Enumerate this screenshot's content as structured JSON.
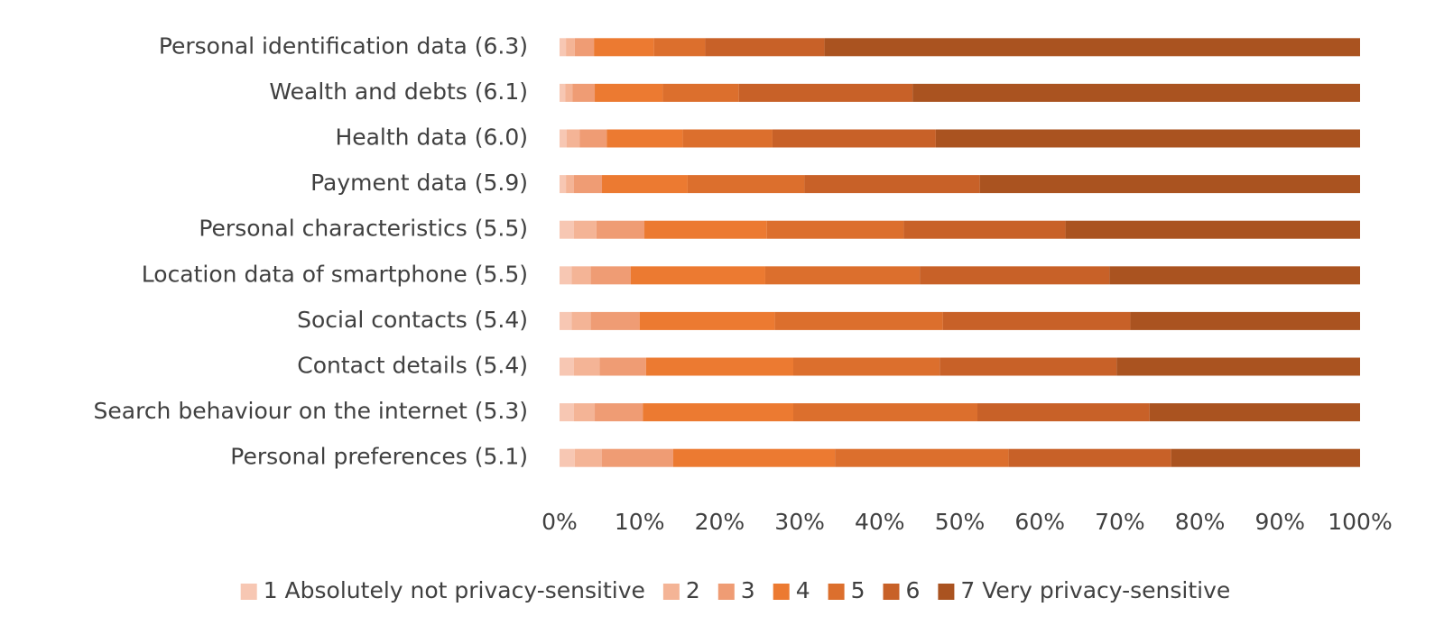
{
  "chart_data": {
    "type": "bar",
    "orientation": "horizontal",
    "stacked": true,
    "categories": [
      "Personal identification data (6.3)",
      "Wealth and debts (6.1)",
      "Health data (6.0)",
      "Payment data (5.9)",
      "Personal characteristics (5.5)",
      "Location data of smartphone (5.5)",
      "Social contacts (5.4)",
      "Contact details (5.4)",
      "Search behaviour on the internet (5.3)",
      "Personal preferences (5.1)"
    ],
    "series": [
      {
        "name": "1 Absolutely not privacy-sensitive",
        "color": "#f7c7b3",
        "values": [
          0.8,
          0.7,
          0.9,
          0.8,
          1.8,
          1.5,
          1.5,
          1.8,
          1.8,
          1.9
        ]
      },
      {
        "name": "2",
        "color": "#f4b496",
        "values": [
          1.1,
          0.9,
          1.6,
          1.0,
          2.8,
          2.4,
          2.4,
          3.2,
          2.6,
          3.4
        ]
      },
      {
        "name": "3",
        "color": "#ef9c74",
        "values": [
          2.4,
          2.8,
          3.4,
          3.5,
          6.0,
          5.0,
          6.1,
          5.8,
          6.0,
          8.9
        ]
      },
      {
        "name": "4",
        "color": "#ec7a31",
        "values": [
          7.5,
          8.5,
          9.5,
          10.7,
          15.3,
          16.8,
          16.9,
          18.4,
          18.8,
          20.2
        ]
      },
      {
        "name": "5",
        "color": "#dc6f2d",
        "values": [
          6.4,
          9.5,
          11.2,
          14.6,
          17.1,
          19.3,
          21.0,
          18.3,
          23.0,
          21.7
        ]
      },
      {
        "name": "6",
        "color": "#c86128",
        "values": [
          14.9,
          21.7,
          20.4,
          21.9,
          20.2,
          23.7,
          23.4,
          22.1,
          21.5,
          20.3
        ]
      },
      {
        "name": "7 Very privacy-sensitive",
        "color": "#aa5320",
        "values": [
          66.9,
          55.9,
          53.0,
          47.5,
          36.8,
          31.3,
          28.7,
          30.4,
          26.3,
          23.6
        ]
      }
    ],
    "xlim": [
      0,
      100
    ],
    "xticks": [
      {
        "value": 0,
        "label": "0%"
      },
      {
        "value": 10,
        "label": "10%"
      },
      {
        "value": 20,
        "label": "20%"
      },
      {
        "value": 30,
        "label": "30%"
      },
      {
        "value": 40,
        "label": "40%"
      },
      {
        "value": 50,
        "label": "50%"
      },
      {
        "value": 60,
        "label": "60%"
      },
      {
        "value": 70,
        "label": "70%"
      },
      {
        "value": 80,
        "label": "80%"
      },
      {
        "value": 90,
        "label": "90%"
      },
      {
        "value": 100,
        "label": "100%"
      }
    ],
    "legend": "bottom"
  }
}
